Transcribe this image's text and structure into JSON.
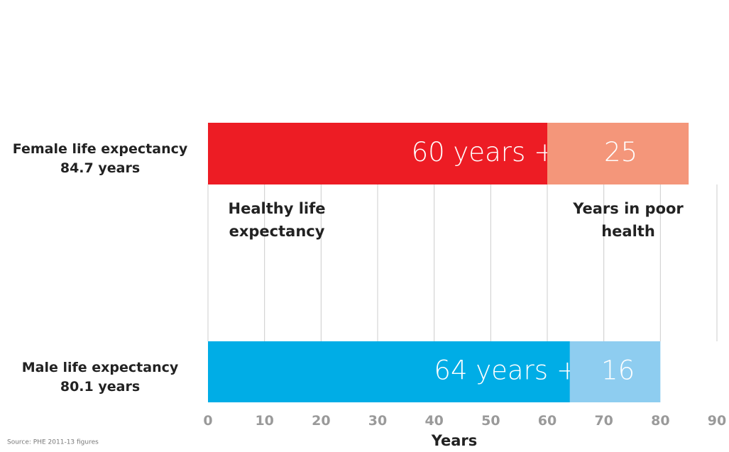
{
  "chart_data": {
    "type": "stacked-barh",
    "categories": [
      "Female life expectancy",
      "Male life expectancy"
    ],
    "category_notes": [
      "84.7 years",
      "80.1 years"
    ],
    "series": [
      {
        "name": "Healthy life expectancy",
        "colors": [
          "#ed1c24",
          "#00ade6"
        ],
        "values": [
          60,
          64
        ],
        "value_labels": [
          "60 years +",
          "64 years +"
        ]
      },
      {
        "name": "Years in poor health",
        "colors": [
          "#f4967a",
          "#8ecdf0"
        ],
        "values": [
          25,
          16
        ],
        "value_labels": [
          "25",
          "16"
        ]
      }
    ],
    "xlabel": "Years",
    "xlim": [
      0,
      90
    ],
    "xticks": [
      0,
      10,
      20,
      30,
      40,
      50,
      60,
      70,
      80,
      90
    ],
    "grid": true,
    "grid_color": "#cccccc",
    "source": "Source: PHE 2011-13 figures"
  }
}
